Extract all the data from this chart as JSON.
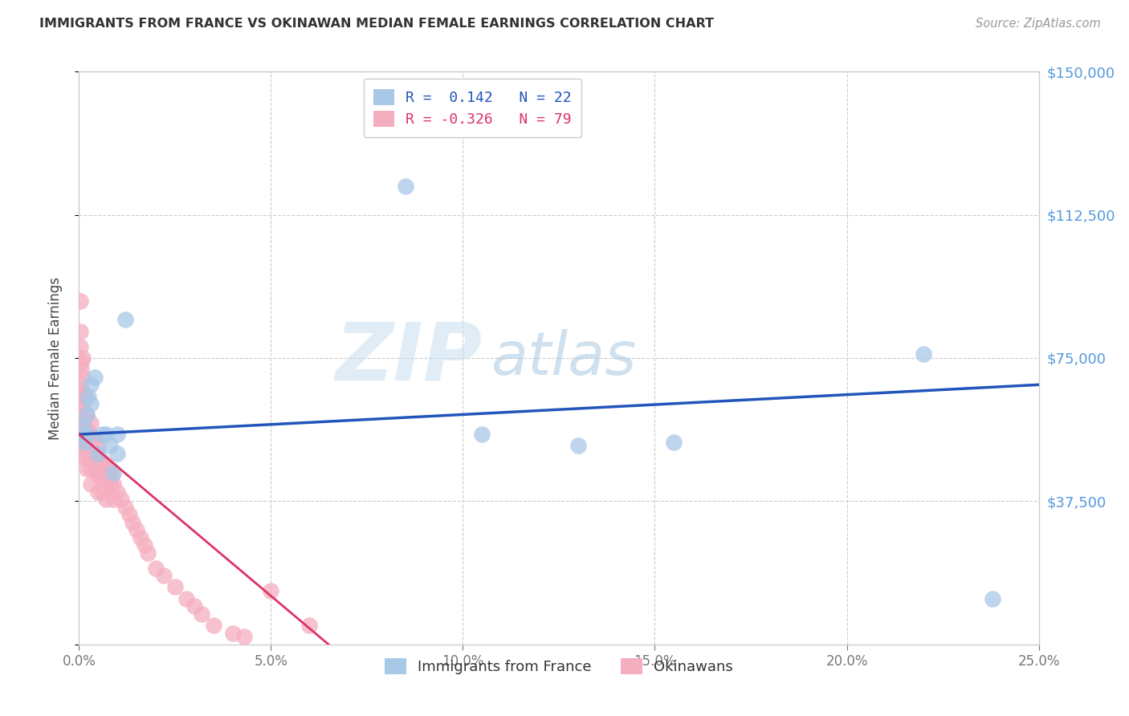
{
  "title": "IMMIGRANTS FROM FRANCE VS OKINAWAN MEDIAN FEMALE EARNINGS CORRELATION CHART",
  "source": "Source: ZipAtlas.com",
  "ylabel": "Median Female Earnings",
  "ytick_labels": [
    "",
    "$37,500",
    "$75,000",
    "$112,500",
    "$150,000"
  ],
  "ytick_values": [
    0,
    37500,
    75000,
    112500,
    150000
  ],
  "xtick_labels": [
    "0.0%",
    "5.0%",
    "10.0%",
    "15.0%",
    "20.0%",
    "25.0%"
  ],
  "xtick_values": [
    0,
    0.05,
    0.1,
    0.15,
    0.2,
    0.25
  ],
  "xlim": [
    0,
    0.25
  ],
  "ylim": [
    0,
    150000
  ],
  "r_france": 0.142,
  "n_france": 22,
  "r_okinawan": -0.326,
  "n_okinawan": 79,
  "blue_color": "#a8c8e8",
  "pink_color": "#f5aec0",
  "blue_line_color": "#2255bb",
  "pink_line_color": "#dd3366",
  "legend_label_france": "Immigrants from France",
  "legend_label_okinawan": "Okinawans",
  "watermark_zip": "ZIP",
  "watermark_atlas": "atlas",
  "title_color": "#333333",
  "right_tick_color": "#5599dd",
  "france_x": [
    0.001,
    0.0015,
    0.002,
    0.002,
    0.0025,
    0.003,
    0.003,
    0.004,
    0.005,
    0.006,
    0.007,
    0.008,
    0.009,
    0.01,
    0.01,
    0.012,
    0.085,
    0.105,
    0.13,
    0.155,
    0.22,
    0.238
  ],
  "france_y": [
    57000,
    53000,
    60000,
    55000,
    65000,
    68000,
    63000,
    70000,
    50000,
    55000,
    55000,
    52000,
    45000,
    50000,
    55000,
    85000,
    120000,
    55000,
    52000,
    53000,
    76000,
    12000
  ],
  "okinawan_x": [
    0.0003,
    0.0004,
    0.0004,
    0.0005,
    0.0006,
    0.0006,
    0.0007,
    0.0008,
    0.0008,
    0.0009,
    0.001,
    0.001,
    0.001,
    0.001,
    0.0011,
    0.0012,
    0.0013,
    0.0014,
    0.0015,
    0.0015,
    0.0016,
    0.0017,
    0.0018,
    0.002,
    0.002,
    0.002,
    0.002,
    0.002,
    0.0022,
    0.0023,
    0.0025,
    0.0025,
    0.003,
    0.003,
    0.003,
    0.003,
    0.003,
    0.0035,
    0.0035,
    0.004,
    0.004,
    0.004,
    0.0045,
    0.005,
    0.005,
    0.005,
    0.005,
    0.0055,
    0.006,
    0.006,
    0.006,
    0.007,
    0.007,
    0.007,
    0.008,
    0.008,
    0.0085,
    0.009,
    0.009,
    0.01,
    0.011,
    0.012,
    0.013,
    0.014,
    0.015,
    0.016,
    0.017,
    0.018,
    0.02,
    0.022,
    0.025,
    0.028,
    0.03,
    0.032,
    0.035,
    0.04,
    0.043,
    0.05,
    0.06
  ],
  "okinawan_y": [
    90000,
    82000,
    78000,
    74000,
    72000,
    68000,
    65000,
    62000,
    58000,
    55000,
    75000,
    70000,
    66000,
    62000,
    58000,
    55000,
    52000,
    49000,
    65000,
    60000,
    57000,
    55000,
    52000,
    60000,
    56000,
    52000,
    49000,
    46000,
    56000,
    53000,
    55000,
    50000,
    58000,
    54000,
    50000,
    46000,
    42000,
    52000,
    48000,
    54000,
    50000,
    46000,
    50000,
    52000,
    48000,
    44000,
    40000,
    48000,
    48000,
    44000,
    40000,
    47000,
    43000,
    38000,
    46000,
    42000,
    44000,
    42000,
    38000,
    40000,
    38000,
    36000,
    34000,
    32000,
    30000,
    28000,
    26000,
    24000,
    20000,
    18000,
    15000,
    12000,
    10000,
    8000,
    5000,
    3000,
    2000,
    14000,
    5000
  ],
  "blue_line_x0": 0.0,
  "blue_line_x1": 0.25,
  "blue_line_y0": 55000,
  "blue_line_y1": 68000,
  "pink_line_x0": 0.0,
  "pink_line_x1": 0.065,
  "pink_line_y0": 55000,
  "pink_line_y1": 0
}
